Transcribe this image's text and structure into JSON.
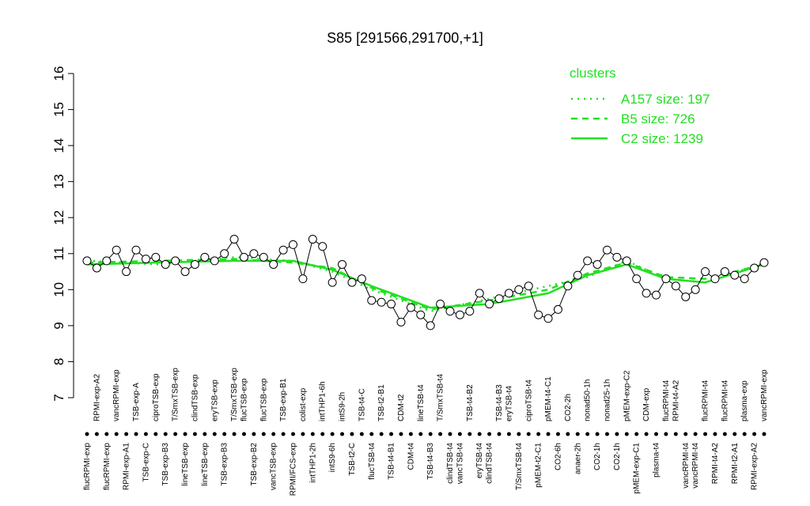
{
  "chart_data": {
    "type": "line",
    "title": "S85 [291566,291700,+1]",
    "ylim": [
      7,
      16
    ],
    "yticks": [
      7,
      8,
      9,
      10,
      11,
      12,
      13,
      14,
      15,
      16
    ],
    "categories": [
      "flucRPMI-exp",
      "RPMI-exp-A2",
      "flucRPMI-exp",
      "vancRPMI-exp",
      "RPMI-exp-A1",
      "TSB-exp-A",
      "TSB-exp-C",
      "ciproTSB-exp",
      "TSB-exp-B3",
      "T/SmxTSB-exp",
      "lineTSB-exp",
      "clindTSB-exp",
      "lineTSB-exp",
      "eryTSB-exp",
      "TSB-exp-B3",
      "T/SmxTSB-exp",
      "flucTSB-exp",
      "TSB-exp-B2",
      "flucTSB-exp",
      "vancTSB-exp",
      "TSB-exp-B1",
      "RPMI/FCS-exp",
      "colist-exp",
      "intTHP1-2h",
      "intTHP1-6h",
      "intS9-6h",
      "intS9-2h",
      "TSB-t2-C",
      "TSB-t4-C",
      "flucTSB-t4",
      "TSB-t2-B1",
      "TSB-t4-B1",
      "CDM-t2",
      "CDM-t4",
      "lineTSB-t4",
      "TSB-t4-B3",
      "T/SmxTSB-t4",
      "clindTSB-t4",
      "vancTSB-t4",
      "TSB-t4-B2",
      "eryTSB-t4",
      "clindTSB-t4",
      "TSB-t4-B3",
      "eryTSB-t4",
      "T/SmxTSB-t4",
      "ciproTSB-t4",
      "pMEM-t2-C1",
      "pMEM-t4-C1",
      "CO2-6h",
      "CO2-2h",
      "anaer-2h",
      "nonad50-1h",
      "CO2-1h",
      "nonad25-1h",
      "CO2-1h",
      "pMEM-exp-C2",
      "pMEM-exp-C1",
      "CDM-exp",
      "plasma-t4",
      "flucRPMI-t4",
      "RPMI-t4-A2",
      "vancRPMI-t4",
      "vancRPMI-t4",
      "flucRPMI-t4",
      "RPMI-t4-A2",
      "flucRPMI-t4",
      "RPMI-t2-A1",
      "plasma-exp",
      "RPMI-exp-A2",
      "vancRPMI-exp"
    ],
    "label_rows": [
      "bottom",
      "top",
      "bottom",
      "top",
      "bottom",
      "top",
      "bottom",
      "top",
      "bottom",
      "top",
      "bottom",
      "top",
      "bottom",
      "top",
      "bottom",
      "top",
      "top",
      "bottom",
      "top",
      "bottom",
      "top",
      "bottom",
      "top",
      "bottom",
      "top",
      "bottom",
      "top",
      "bottom",
      "top",
      "bottom",
      "top",
      "bottom",
      "top",
      "bottom",
      "top",
      "bottom",
      "top",
      "bottom",
      "bottom",
      "top",
      "bottom",
      "bottom",
      "top",
      "top",
      "bottom",
      "top",
      "bottom",
      "top",
      "bottom",
      "top",
      "bottom",
      "top",
      "bottom",
      "top",
      "bottom",
      "top",
      "bottom",
      "top",
      "bottom",
      "top",
      "top",
      "bottom",
      "bottom",
      "top",
      "bottom",
      "top",
      "bottom",
      "top",
      "bottom",
      "top"
    ],
    "values": [
      10.8,
      10.6,
      10.8,
      11.1,
      10.5,
      11.1,
      10.85,
      10.9,
      10.7,
      10.8,
      10.5,
      10.7,
      10.9,
      10.8,
      11.0,
      11.4,
      10.9,
      11.0,
      10.9,
      10.7,
      11.1,
      11.25,
      10.3,
      11.4,
      11.2,
      10.2,
      10.7,
      10.2,
      10.3,
      9.7,
      9.65,
      9.6,
      9.1,
      9.5,
      9.3,
      9.0,
      9.6,
      9.4,
      9.3,
      9.4,
      9.9,
      9.6,
      9.75,
      9.9,
      10.0,
      10.1,
      9.3,
      9.2,
      9.45,
      10.1,
      10.4,
      10.8,
      10.7,
      11.1,
      10.9,
      10.8,
      10.3,
      9.9,
      9.85,
      10.3,
      10.1,
      9.8,
      10.0,
      10.5,
      10.3,
      10.5,
      10.4,
      10.3,
      10.6,
      10.75
    ],
    "legend_title": "clusters",
    "series": [
      {
        "name": "A157 size: 197",
        "style": "dotted",
        "color": "#22e022",
        "x": [
          1,
          8,
          16,
          22,
          26,
          30,
          36,
          42,
          48,
          52,
          56,
          60,
          64,
          70
        ],
        "values": [
          10.8,
          10.7,
          10.9,
          10.8,
          10.5,
          10.0,
          9.4,
          9.75,
          10.1,
          10.35,
          10.8,
          10.3,
          10.2,
          10.75
        ]
      },
      {
        "name": "B5 size: 726",
        "style": "dashed",
        "color": "#22e022",
        "x": [
          1,
          8,
          16,
          22,
          26,
          30,
          36,
          42,
          48,
          52,
          56,
          60,
          64,
          70
        ],
        "values": [
          10.75,
          10.8,
          10.85,
          10.75,
          10.6,
          10.05,
          9.45,
          9.7,
          10.0,
          10.45,
          10.75,
          10.35,
          10.3,
          10.7
        ]
      },
      {
        "name": "C2 size: 1239",
        "style": "solid",
        "color": "#22e022",
        "x": [
          1,
          8,
          16,
          22,
          26,
          30,
          36,
          42,
          48,
          52,
          56,
          60,
          64,
          70
        ],
        "values": [
          10.7,
          10.75,
          10.8,
          10.8,
          10.55,
          10.1,
          9.5,
          9.6,
          9.9,
          10.4,
          10.7,
          10.3,
          10.2,
          10.7
        ]
      }
    ]
  }
}
